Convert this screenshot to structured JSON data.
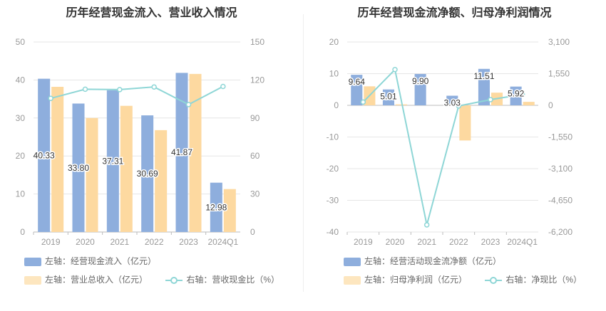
{
  "colors": {
    "bar1": "#8eaedd",
    "bar2": "#fdd9a0",
    "line": "#8ed6d6",
    "axis": "#999999",
    "grid": "#e6e6e6"
  },
  "chart_data": [
    {
      "type": "bar",
      "title": "历年经营现金流入、营业收入情况",
      "categories": [
        "2019",
        "2020",
        "2021",
        "2022",
        "2023",
        "2024Q1"
      ],
      "series": [
        {
          "name": "左轴：经营现金流入（亿元）",
          "axis": "left",
          "values": [
            40.33,
            33.8,
            37.31,
            30.69,
            41.87,
            12.98
          ],
          "labels": [
            "40.33",
            "33.80",
            "37.31",
            "30.69",
            "41.87",
            "12.98"
          ]
        },
        {
          "name": "左轴：营业总收入（亿元）",
          "axis": "left",
          "values": [
            38.2,
            30.0,
            33.2,
            26.8,
            41.6,
            11.3
          ]
        },
        {
          "name": "右轴：营收现金比（%）",
          "axis": "right",
          "type": "line",
          "values": [
            105.5,
            112.7,
            112.4,
            114.5,
            100.6,
            114.9
          ]
        }
      ],
      "left_axis": {
        "min": 0,
        "max": 50,
        "ticks": [
          "0",
          "10",
          "20",
          "30",
          "40",
          "50"
        ]
      },
      "right_axis": {
        "min": 0,
        "max": 150,
        "ticks": [
          "0",
          "30",
          "60",
          "90",
          "120",
          "150"
        ]
      }
    },
    {
      "type": "bar",
      "title": "历年经营现金流净额、归母净利润情况",
      "categories": [
        "2019",
        "2020",
        "2021",
        "2022",
        "2023",
        "2024Q1"
      ],
      "series": [
        {
          "name": "左轴：经营活动现金流净额（亿元）",
          "axis": "left",
          "values": [
            9.64,
            5.01,
            9.9,
            3.03,
            11.51,
            5.92
          ],
          "labels": [
            "9.64",
            "5.01",
            "9.90",
            "3.03",
            "11.51",
            "5.92"
          ]
        },
        {
          "name": "左轴：归母净利润（亿元）",
          "axis": "left",
          "values": [
            6.0,
            0.3,
            0.0,
            -11.1,
            4.0,
            1.1
          ]
        },
        {
          "name": "右轴：净现比（%）",
          "axis": "right",
          "type": "line",
          "values": [
            160,
            1750,
            -5850,
            -30,
            280,
            530
          ]
        }
      ],
      "left_axis": {
        "min": -40,
        "max": 20,
        "ticks": [
          "-40",
          "-30",
          "-20",
          "-10",
          "0",
          "10",
          "20"
        ]
      },
      "right_axis": {
        "min": -6200,
        "max": 3100,
        "ticks": [
          "-6,200",
          "-4,650",
          "-3,100",
          "-1,550",
          "0",
          "1,550",
          "3,100"
        ]
      }
    }
  ]
}
